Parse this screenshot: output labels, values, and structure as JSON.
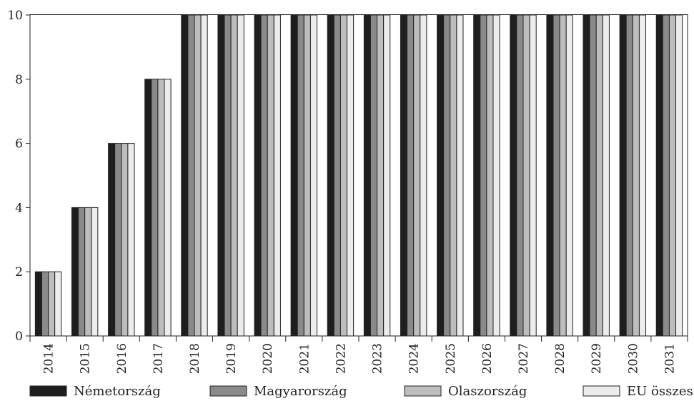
{
  "chart_data": {
    "type": "bar",
    "categories": [
      "2014",
      "2015",
      "2016",
      "2017",
      "2018",
      "2019",
      "2020",
      "2021",
      "2022",
      "2023",
      "2024",
      "2025",
      "2026",
      "2027",
      "2028",
      "2029",
      "2030",
      "2031"
    ],
    "series": [
      {
        "name": "Németország",
        "color": "#1e1e1e",
        "values": [
          2,
          4,
          6,
          8,
          10,
          10,
          10,
          10,
          10,
          10,
          10,
          10,
          10,
          10,
          10,
          10,
          10,
          10
        ]
      },
      {
        "name": "Magyarország",
        "color": "#8a8a8a",
        "values": [
          2,
          4,
          6,
          8,
          10,
          10,
          10,
          10,
          10,
          10,
          10,
          10,
          10,
          10,
          10,
          10,
          10,
          10
        ]
      },
      {
        "name": "Olaszország",
        "color": "#bdbdbd",
        "values": [
          2,
          4,
          6,
          8,
          10,
          10,
          10,
          10,
          10,
          10,
          10,
          10,
          10,
          10,
          10,
          10,
          10,
          10
        ]
      },
      {
        "name": "EU összes",
        "color": "#ececec",
        "values": [
          2,
          4,
          6,
          8,
          10,
          10,
          10,
          10,
          10,
          10,
          10,
          10,
          10,
          10,
          10,
          10,
          10,
          10
        ]
      }
    ],
    "ylim": [
      0,
      10
    ],
    "yticks": [
      "0",
      "2",
      "4",
      "6",
      "8",
      "10"
    ],
    "grid": false,
    "legend_position": "bottom",
    "title": "",
    "xlabel": "",
    "ylabel": ""
  }
}
